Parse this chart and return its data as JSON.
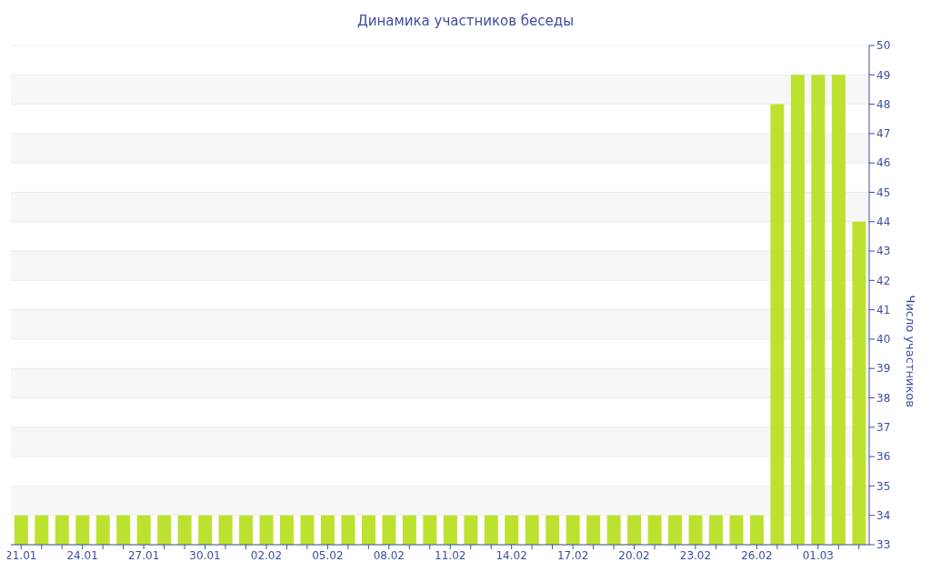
{
  "chart_data": {
    "type": "bar",
    "title": "Динамика участников беседы",
    "ylabel": "Число участников",
    "categories": [
      "21.01",
      null,
      null,
      "24.01",
      null,
      null,
      "27.01",
      null,
      null,
      "30.01",
      null,
      null,
      "02.02",
      null,
      null,
      "05.02",
      null,
      null,
      "08.02",
      null,
      null,
      "11.02",
      null,
      null,
      "14.02",
      null,
      null,
      "17.02",
      null,
      null,
      "20.02",
      null,
      null,
      "23.02",
      null,
      null,
      "26.02",
      null,
      null,
      "01.03",
      null,
      null
    ],
    "values": [
      34,
      34,
      34,
      34,
      34,
      34,
      34,
      34,
      34,
      34,
      34,
      34,
      34,
      34,
      34,
      34,
      34,
      34,
      34,
      34,
      34,
      34,
      34,
      34,
      34,
      34,
      34,
      34,
      34,
      34,
      34,
      34,
      34,
      34,
      34,
      34,
      34,
      48,
      49,
      49,
      49,
      44
    ],
    "color": "#bde12f",
    "ylim": [
      33,
      50
    ],
    "yticks": [
      33,
      34,
      35,
      36,
      37,
      38,
      39,
      40,
      41,
      42,
      43,
      44,
      45,
      46,
      47,
      48,
      49,
      50
    ],
    "grid": "y"
  }
}
